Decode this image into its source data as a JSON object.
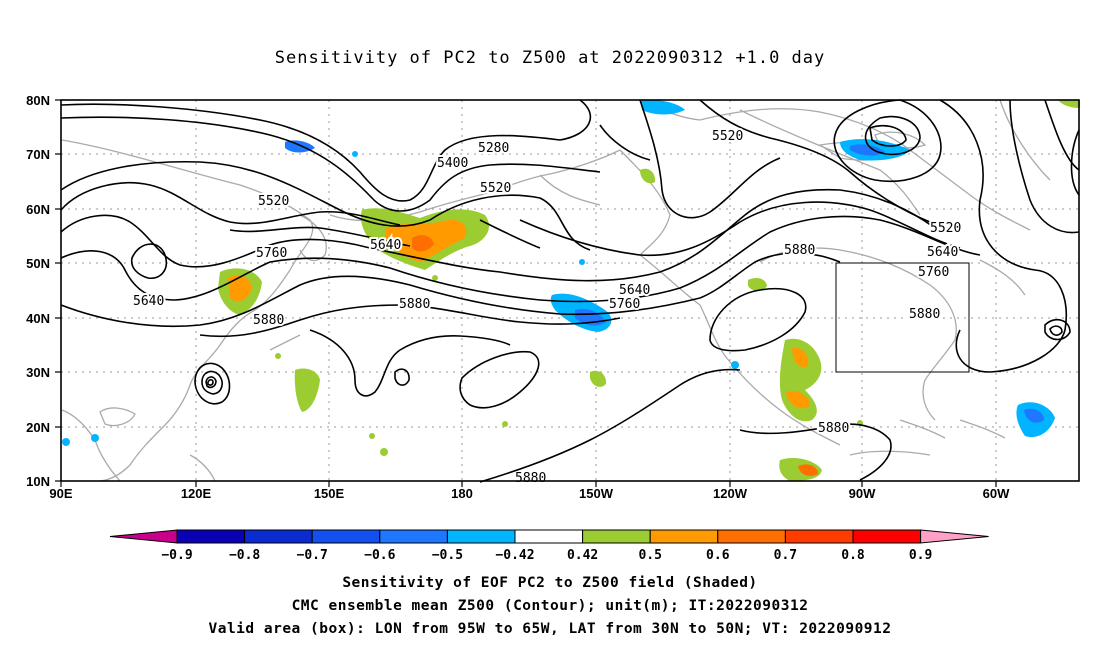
{
  "title": "Sensitivity of PC2 to Z500 at 2022090312 +1.0 day",
  "lat_labels": [
    "80N",
    "70N",
    "60N",
    "50N",
    "40N",
    "30N",
    "20N",
    "10N"
  ],
  "lon_labels": [
    "90E",
    "120E",
    "150E",
    "180",
    "150W",
    "120W",
    "90W",
    "60W"
  ],
  "contour_labels": [
    {
      "text": "5280"
    },
    {
      "text": "5400"
    },
    {
      "text": "5520"
    },
    {
      "text": "5520"
    },
    {
      "text": "5640"
    },
    {
      "text": "5760"
    },
    {
      "text": "5640"
    },
    {
      "text": "5880"
    },
    {
      "text": "5640"
    },
    {
      "text": "5760"
    },
    {
      "text": "5520"
    },
    {
      "text": "5640"
    },
    {
      "text": "5760"
    },
    {
      "text": "5880"
    },
    {
      "text": "5880"
    },
    {
      "text": "5880"
    },
    {
      "text": "5880"
    },
    {
      "text": "5520"
    }
  ],
  "colorbar": {
    "labels": [
      "-0.9",
      "-0.8",
      "-0.7",
      "-0.6",
      "-0.5",
      "-0.42",
      "0.42",
      "0.5",
      "0.6",
      "0.7",
      "0.8",
      "0.9"
    ],
    "colors": [
      "#0a00b4",
      "#0a2ad2",
      "#1450f0",
      "#1e78ff",
      "#00b4ff",
      "#ffffff",
      "#9bcd32",
      "#ff9a00",
      "#ff6e00",
      "#ff3c00",
      "#ff0000"
    ],
    "low_end_color": "#c8008c",
    "high_end_color": "#ffa0c8"
  },
  "caption": {
    "line1": "Sensitivity of EOF PC2 to Z500 field (Shaded)",
    "line2": "CMC ensemble mean Z500 (Contour); unit(m); IT:2022090312",
    "line3": "Valid area (box): LON from 95W to 65W, LAT from 30N to 50N; VT: 2022090912"
  }
}
